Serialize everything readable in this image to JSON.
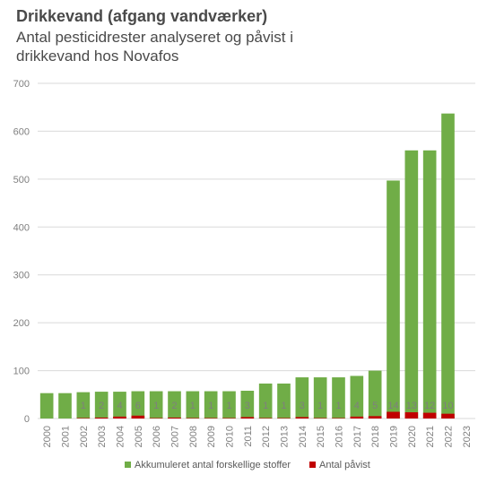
{
  "chart_data": {
    "type": "bar",
    "title": "Drikkevand (afgang vandværker)",
    "subtitle": "Antal pesticidrester analyseret og påvist i drikkevand hos Novafos",
    "categories": [
      "2000",
      "2001",
      "2002",
      "2003",
      "2004",
      "2005",
      "2006",
      "2007",
      "2008",
      "2009",
      "2010",
      "2011",
      "2012",
      "2013",
      "2014",
      "2015",
      "2016",
      "2017",
      "2018",
      "2019",
      "2020",
      "2021",
      "2022",
      "2023"
    ],
    "ylim": [
      0,
      700
    ],
    "yticks": [
      0,
      100,
      200,
      300,
      400,
      500,
      600,
      700
    ],
    "grid": true,
    "legend": "bottom",
    "series": [
      {
        "name": "Akkumuleret antal forskellige stoffer",
        "color": "#70ad47",
        "values": [
          53,
          53,
          55,
          56,
          56,
          57,
          57,
          57,
          57,
          57,
          57,
          58,
          73,
          73,
          86,
          86,
          86,
          89,
          100,
          497,
          560,
          560,
          637,
          null
        ]
      },
      {
        "name": "Antal påvist",
        "color": "#c00000",
        "values": [
          0,
          0,
          1,
          2,
          4,
          6,
          1,
          2,
          1,
          1,
          1,
          3,
          1,
          1,
          3,
          1,
          1,
          4,
          5,
          14,
          13,
          12,
          10,
          null
        ],
        "labels": [
          "",
          "",
          "1",
          "2",
          "4",
          "6",
          "1",
          "2",
          "1",
          "1",
          "1",
          "3",
          "1",
          "1",
          "3",
          "1",
          "1",
          "4",
          "5",
          "14",
          "13",
          "12",
          "10",
          ""
        ]
      }
    ]
  }
}
